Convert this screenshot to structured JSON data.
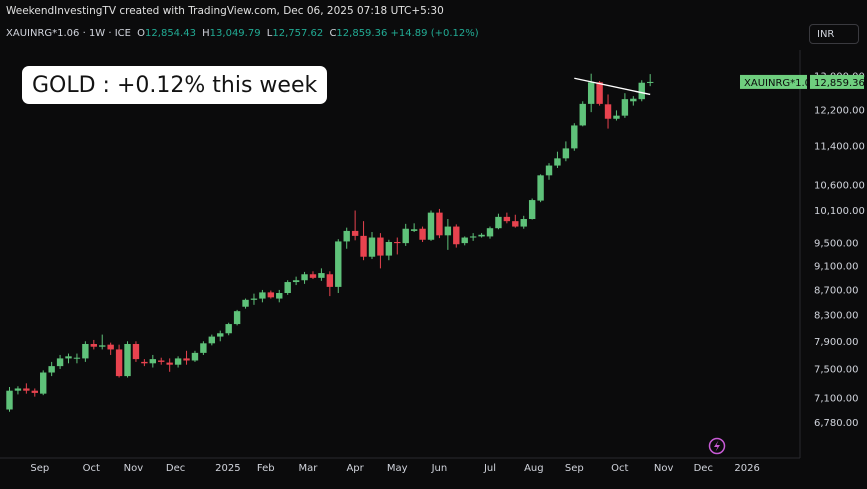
{
  "attribution": "WeekendInvestingTV created with TradingView.com, Dec 06, 2025 07:18 UTC+5:30",
  "infobar": {
    "symbol": "XAUINRG*1.06 · 1W · ICE",
    "o_label": "O",
    "o_value": "12,854.43",
    "h_label": "H",
    "h_value": "13,049.79",
    "l_label": "L",
    "l_value": "12,757.62",
    "c_label": "C",
    "c_value": "12,859.36",
    "change": "+14.89 (+0.12%)"
  },
  "currency_button": "INR",
  "callout": "GOLD : +0.12% this week",
  "last_price": {
    "symbol": "XAUINRG*1.06",
    "value": "12,859.36"
  },
  "colors": {
    "up": "#5fc27a",
    "down": "#e8434f",
    "background": "#0b0b0c",
    "trendline": "#ffffff",
    "price_badge": "#6fcf7f"
  },
  "chart_data": {
    "type": "candlestick",
    "scale": "log",
    "grid": false,
    "ylim": [
      6600,
      13250
    ],
    "y_ticks": [
      13000,
      12200,
      11400,
      10600,
      10100,
      9500,
      9100,
      8700,
      8300,
      7900,
      7500,
      7100,
      6780
    ],
    "y_tick_labels": [
      "13,000.00",
      "12,200.00",
      "11,400.00",
      "10,600.00",
      "10,100.00",
      "9,500.00",
      "9,100.00",
      "8,700.00",
      "8,300.00",
      "7,900.00",
      "7,500.00",
      "7,100.00",
      "6,780.00"
    ],
    "x_ticks": [
      "Sep",
      "Oct",
      "Nov",
      "Dec",
      "2025",
      "Feb",
      "Mar",
      "Apr",
      "May",
      "Jun",
      "Jul",
      "Aug",
      "Sep",
      "Oct",
      "Nov",
      "Dec",
      "2026"
    ],
    "candles": [
      [
        6950,
        7250,
        6920,
        7200
      ],
      [
        7200,
        7260,
        7150,
        7230
      ],
      [
        7230,
        7300,
        7160,
        7200
      ],
      [
        7200,
        7230,
        7120,
        7170
      ],
      [
        7160,
        7480,
        7140,
        7450
      ],
      [
        7450,
        7600,
        7400,
        7540
      ],
      [
        7540,
        7700,
        7500,
        7650
      ],
      [
        7650,
        7720,
        7580,
        7680
      ],
      [
        7650,
        7720,
        7580,
        7660
      ],
      [
        7650,
        7900,
        7600,
        7860
      ],
      [
        7860,
        7920,
        7780,
        7820
      ],
      [
        7820,
        8000,
        7780,
        7840
      ],
      [
        7850,
        7880,
        7700,
        7780
      ],
      [
        7780,
        7850,
        7380,
        7400
      ],
      [
        7400,
        7900,
        7380,
        7860
      ],
      [
        7860,
        7900,
        7600,
        7640
      ],
      [
        7600,
        7640,
        7540,
        7580
      ],
      [
        7580,
        7700,
        7520,
        7640
      ],
      [
        7620,
        7660,
        7560,
        7600
      ],
      [
        7590,
        7650,
        7460,
        7560
      ],
      [
        7560,
        7680,
        7520,
        7650
      ],
      [
        7650,
        7760,
        7560,
        7620
      ],
      [
        7620,
        7760,
        7600,
        7730
      ],
      [
        7730,
        7900,
        7700,
        7870
      ],
      [
        7870,
        8000,
        7840,
        7970
      ],
      [
        7970,
        8060,
        7900,
        8020
      ],
      [
        8020,
        8180,
        7990,
        8160
      ],
      [
        8160,
        8380,
        8140,
        8360
      ],
      [
        8430,
        8560,
        8400,
        8540
      ],
      [
        8540,
        8640,
        8460,
        8560
      ],
      [
        8560,
        8700,
        8500,
        8660
      ],
      [
        8660,
        8690,
        8560,
        8580
      ],
      [
        8560,
        8700,
        8500,
        8650
      ],
      [
        8650,
        8860,
        8620,
        8830
      ],
      [
        8830,
        8920,
        8780,
        8860
      ],
      [
        8860,
        9000,
        8800,
        8960
      ],
      [
        8960,
        9010,
        8880,
        8900
      ],
      [
        8900,
        9060,
        8850,
        8980
      ],
      [
        8960,
        9010,
        8600,
        8750
      ],
      [
        8750,
        9570,
        8650,
        9530
      ],
      [
        9530,
        9780,
        9400,
        9720
      ],
      [
        9720,
        10100,
        9550,
        9630
      ],
      [
        9630,
        9900,
        9200,
        9260
      ],
      [
        9260,
        9700,
        9220,
        9600
      ],
      [
        9600,
        9680,
        9060,
        9280
      ],
      [
        9280,
        9560,
        9200,
        9520
      ],
      [
        9520,
        9600,
        9300,
        9500
      ],
      [
        9500,
        9850,
        9450,
        9760
      ],
      [
        9720,
        9860,
        9700,
        9750
      ],
      [
        9760,
        9800,
        9520,
        9560
      ],
      [
        9560,
        10100,
        9540,
        10060
      ],
      [
        10060,
        10130,
        9590,
        9640
      ],
      [
        9640,
        9940,
        9380,
        9800
      ],
      [
        9800,
        9840,
        9420,
        9480
      ],
      [
        9500,
        9620,
        9460,
        9600
      ],
      [
        9600,
        9680,
        9540,
        9620
      ],
      [
        9620,
        9680,
        9600,
        9650
      ],
      [
        9620,
        9800,
        9580,
        9770
      ],
      [
        9770,
        10040,
        9750,
        9980
      ],
      [
        9980,
        10060,
        9860,
        9900
      ],
      [
        9900,
        10020,
        9780,
        9800
      ],
      [
        9800,
        10000,
        9760,
        9940
      ],
      [
        9940,
        10330,
        9930,
        10300
      ],
      [
        10290,
        10810,
        10260,
        10790
      ],
      [
        10790,
        11040,
        10700,
        10990
      ],
      [
        10990,
        11280,
        10940,
        11140
      ],
      [
        11140,
        11500,
        11080,
        11350
      ],
      [
        11350,
        11900,
        11300,
        11850
      ],
      [
        11850,
        12400,
        11830,
        12340
      ],
      [
        12340,
        13060,
        12150,
        12850
      ],
      [
        12850,
        12880,
        12300,
        12340
      ],
      [
        12330,
        12560,
        11780,
        12000
      ],
      [
        12000,
        12190,
        11960,
        12070
      ],
      [
        12070,
        12590,
        12020,
        12450
      ],
      [
        12400,
        12520,
        12300,
        12460
      ],
      [
        12450,
        12900,
        12400,
        12840
      ],
      [
        12854.43,
        13049.79,
        12757.62,
        12859.36
      ]
    ],
    "trendline": [
      [
        12900,
        12560
      ]
    ]
  }
}
